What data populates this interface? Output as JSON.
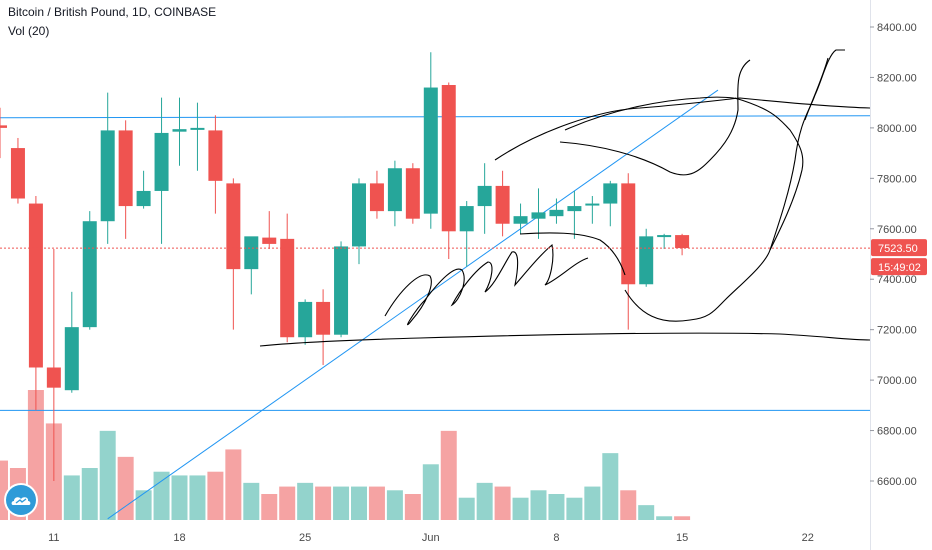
{
  "header": {
    "symbol_line": "Bitcoin / British Pound, 1D, COINBASE",
    "volume_line": "Vol (20)"
  },
  "price_axis": {
    "labels": [
      "8400.00",
      "8200.00",
      "8000.00",
      "7800.00",
      "7600.00",
      "7400.00",
      "7200.00",
      "7000.00",
      "6800.00",
      "6600.00"
    ]
  },
  "current_price": {
    "label": "7523.50",
    "countdown": "15:49:02"
  },
  "colors": {
    "up": "#26a69a",
    "down": "#ef5350",
    "up_vol": "#93d3cc",
    "down_vol": "#f5a3a3",
    "trendline": "#2196f3",
    "drawing": "#000000"
  },
  "chart_data": {
    "type": "candlestick",
    "title": "Bitcoin / British Pound, 1D, COINBASE",
    "indicator": "Vol (20)",
    "y_range": [
      6450,
      8520
    ],
    "y_ticks": [
      8400,
      8200,
      8000,
      7800,
      7600,
      7400,
      7200,
      7000,
      6800,
      6600
    ],
    "x_tick_labels": [
      {
        "label": "11",
        "day": "2019-05-11"
      },
      {
        "label": "18",
        "day": "2019-05-18"
      },
      {
        "label": "25",
        "day": "2019-05-25"
      },
      {
        "label": "Jun",
        "day": "2019-06-01"
      },
      {
        "label": "8",
        "day": "2019-06-08"
      },
      {
        "label": "15",
        "day": "2019-06-15"
      },
      {
        "label": "22",
        "day": "2019-06-22"
      }
    ],
    "candles": [
      {
        "date": "2019-05-08",
        "o": 8010,
        "h": 8080,
        "l": 7880,
        "c": 8000
      },
      {
        "date": "2019-05-09",
        "o": 7920,
        "h": 7960,
        "l": 7700,
        "c": 7720
      },
      {
        "date": "2019-05-10",
        "o": 7700,
        "h": 7730,
        "l": 6880,
        "c": 7050
      },
      {
        "date": "2019-05-11",
        "o": 7050,
        "h": 7520,
        "l": 6600,
        "c": 6970
      },
      {
        "date": "2019-05-12",
        "o": 6960,
        "h": 7350,
        "l": 6950,
        "c": 7210
      },
      {
        "date": "2019-05-13",
        "o": 7210,
        "h": 7670,
        "l": 7200,
        "c": 7630
      },
      {
        "date": "2019-05-14",
        "o": 7630,
        "h": 8140,
        "l": 7540,
        "c": 7990
      },
      {
        "date": "2019-05-15",
        "o": 7990,
        "h": 8030,
        "l": 7560,
        "c": 7690
      },
      {
        "date": "2019-05-16",
        "o": 7690,
        "h": 7830,
        "l": 7680,
        "c": 7750
      },
      {
        "date": "2019-05-17",
        "o": 7750,
        "h": 8120,
        "l": 7540,
        "c": 7980
      },
      {
        "date": "2019-05-18",
        "o": 7985,
        "h": 8120,
        "l": 7850,
        "c": 7995
      },
      {
        "date": "2019-05-19",
        "o": 7995,
        "h": 8100,
        "l": 7830,
        "c": 8000
      },
      {
        "date": "2019-05-20",
        "o": 7990,
        "h": 8050,
        "l": 7660,
        "c": 7790
      },
      {
        "date": "2019-05-21",
        "o": 7780,
        "h": 7800,
        "l": 7200,
        "c": 7440
      },
      {
        "date": "2019-05-22",
        "o": 7440,
        "h": 7560,
        "l": 7340,
        "c": 7570
      },
      {
        "date": "2019-05-23",
        "o": 7565,
        "h": 7670,
        "l": 7520,
        "c": 7540
      },
      {
        "date": "2019-05-24",
        "o": 7560,
        "h": 7660,
        "l": 7150,
        "c": 7170
      },
      {
        "date": "2019-05-25",
        "o": 7170,
        "h": 7320,
        "l": 7140,
        "c": 7310
      },
      {
        "date": "2019-05-26",
        "o": 7310,
        "h": 7360,
        "l": 7060,
        "c": 7180
      },
      {
        "date": "2019-05-27",
        "o": 7180,
        "h": 7550,
        "l": 7170,
        "c": 7530
      },
      {
        "date": "2019-05-28",
        "o": 7530,
        "h": 7800,
        "l": 7460,
        "c": 7780
      },
      {
        "date": "2019-05-29",
        "o": 7780,
        "h": 7830,
        "l": 7640,
        "c": 7670
      },
      {
        "date": "2019-05-30",
        "o": 7670,
        "h": 7870,
        "l": 7610,
        "c": 7840
      },
      {
        "date": "2019-05-31",
        "o": 7840,
        "h": 7860,
        "l": 7620,
        "c": 7640
      },
      {
        "date": "2019-06-01",
        "o": 7660,
        "h": 8300,
        "l": 7600,
        "c": 8160
      },
      {
        "date": "2019-06-02",
        "o": 8170,
        "h": 8180,
        "l": 7480,
        "c": 7590
      },
      {
        "date": "2019-06-03",
        "o": 7590,
        "h": 7710,
        "l": 7450,
        "c": 7690
      },
      {
        "date": "2019-06-04",
        "o": 7690,
        "h": 7860,
        "l": 7580,
        "c": 7770
      },
      {
        "date": "2019-06-05",
        "o": 7770,
        "h": 7830,
        "l": 7570,
        "c": 7620
      },
      {
        "date": "2019-06-06",
        "o": 7620,
        "h": 7700,
        "l": 7580,
        "c": 7650
      },
      {
        "date": "2019-06-07",
        "o": 7640,
        "h": 7760,
        "l": 7560,
        "c": 7665
      },
      {
        "date": "2019-06-08",
        "o": 7650,
        "h": 7720,
        "l": 7620,
        "c": 7675
      },
      {
        "date": "2019-06-09",
        "o": 7670,
        "h": 7750,
        "l": 7560,
        "c": 7690
      },
      {
        "date": "2019-06-10",
        "o": 7695,
        "h": 7730,
        "l": 7620,
        "c": 7700
      },
      {
        "date": "2019-06-11",
        "o": 7700,
        "h": 7790,
        "l": 7610,
        "c": 7780
      },
      {
        "date": "2019-06-12",
        "o": 7780,
        "h": 7820,
        "l": 7200,
        "c": 7380
      },
      {
        "date": "2019-06-13",
        "o": 7380,
        "h": 7600,
        "l": 7370,
        "c": 7570
      },
      {
        "date": "2019-06-14",
        "o": 7570,
        "h": 7580,
        "l": 7520,
        "c": 7575
      },
      {
        "date": "2019-06-15",
        "o": 7575,
        "h": 7580,
        "l": 7495,
        "c": 7523.5
      }
    ],
    "volume": [
      16,
      14,
      35,
      26,
      12,
      14,
      24,
      17,
      8,
      13,
      12,
      12,
      13,
      19,
      10,
      7,
      9,
      10,
      9,
      9,
      9,
      9,
      8,
      7,
      15,
      24,
      6,
      10,
      9,
      6,
      8,
      7,
      6,
      9,
      18,
      8,
      4,
      1,
      1
    ],
    "volume_max": 35,
    "horizontal_levels": [
      8040,
      6880
    ],
    "trendline": [
      {
        "date": "2019-05-14",
        "price": 6450
      },
      {
        "date": "2019-06-17",
        "price": 8150
      }
    ],
    "current_price": 7523.5
  }
}
